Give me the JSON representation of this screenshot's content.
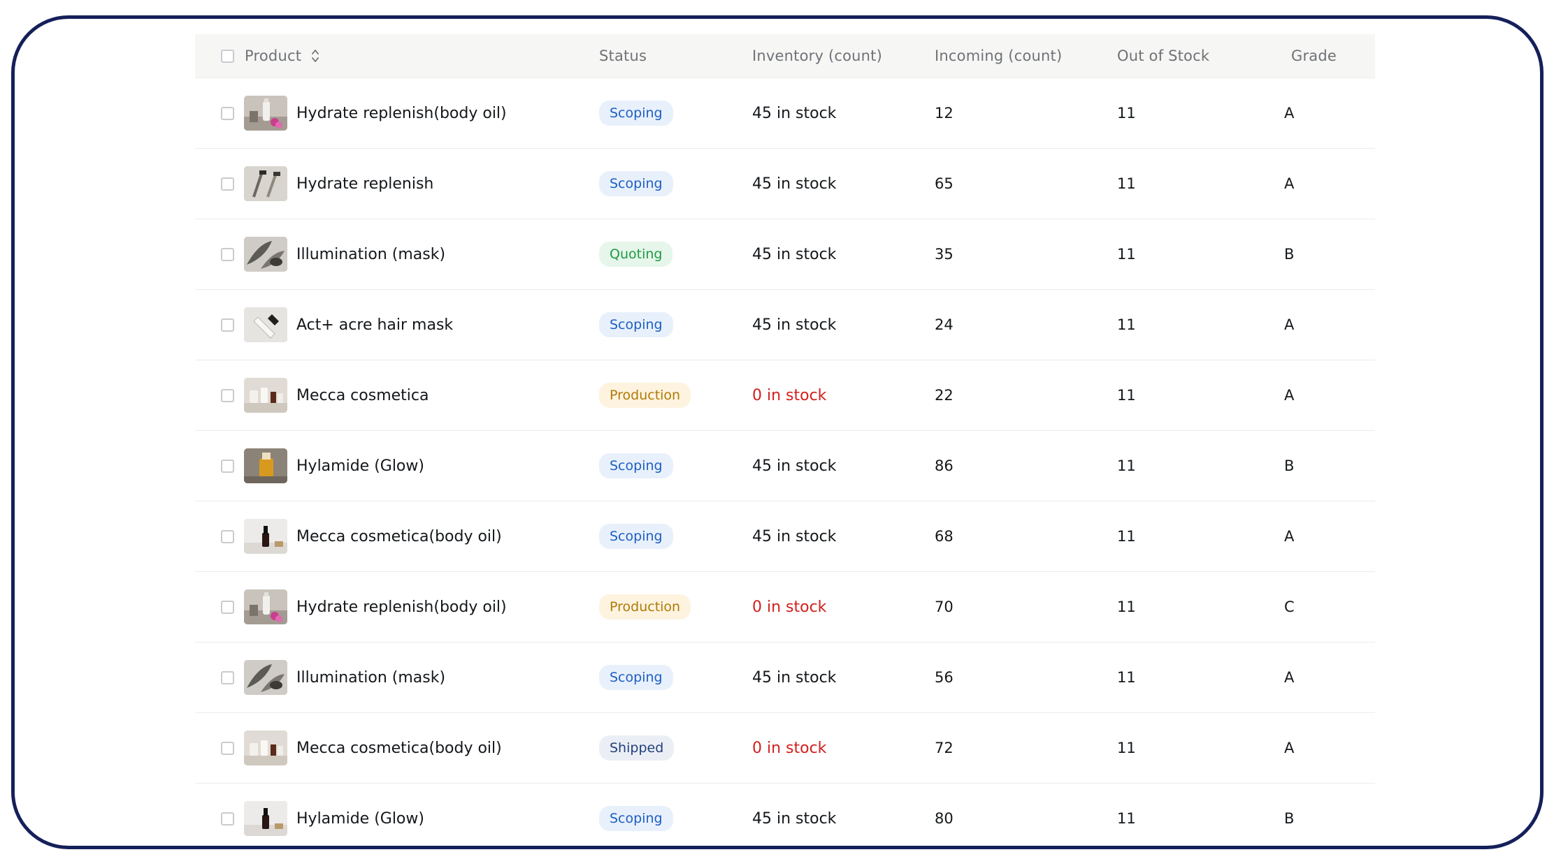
{
  "table": {
    "columns": {
      "product": "Product",
      "status": "Status",
      "inventory": "Inventory (count)",
      "incoming": "Incoming (count)",
      "out_of_stock": "Out of Stock",
      "grade": "Grade"
    },
    "rows": [
      {
        "name": "Hydrate replenish(body oil)",
        "thumb": "bottle-flower",
        "status": "Scoping",
        "status_kind": "scoping",
        "inventory": "45 in stock",
        "inventory_out": false,
        "incoming": "12",
        "out_of_stock": "11",
        "grade": "A"
      },
      {
        "name": "Hydrate replenish",
        "thumb": "roller",
        "status": "Scoping",
        "status_kind": "scoping",
        "inventory": "45 in stock",
        "inventory_out": false,
        "incoming": "65",
        "out_of_stock": "11",
        "grade": "A"
      },
      {
        "name": "Illumination (mask)",
        "thumb": "leaves",
        "status": "Quoting",
        "status_kind": "quoting",
        "inventory": "45 in stock",
        "inventory_out": false,
        "incoming": "35",
        "out_of_stock": "11",
        "grade": "B"
      },
      {
        "name": "Act+ acre hair mask",
        "thumb": "tube",
        "status": "Scoping",
        "status_kind": "scoping",
        "inventory": "45 in stock",
        "inventory_out": false,
        "incoming": "24",
        "out_of_stock": "11",
        "grade": "A"
      },
      {
        "name": "Mecca cosmetica",
        "thumb": "jars",
        "status": "Production",
        "status_kind": "production",
        "inventory": "0 in stock",
        "inventory_out": true,
        "incoming": "22",
        "out_of_stock": "11",
        "grade": "A"
      },
      {
        "name": "Hylamide (Glow)",
        "thumb": "serum",
        "status": "Scoping",
        "status_kind": "scoping",
        "inventory": "45 in stock",
        "inventory_out": false,
        "incoming": "86",
        "out_of_stock": "11",
        "grade": "B"
      },
      {
        "name": "Mecca cosmetica(body oil)",
        "thumb": "dropper",
        "status": "Scoping",
        "status_kind": "scoping",
        "inventory": "45 in stock",
        "inventory_out": false,
        "incoming": "68",
        "out_of_stock": "11",
        "grade": "A"
      },
      {
        "name": "Hydrate replenish(body oil)",
        "thumb": "bottle-flower",
        "status": "Production",
        "status_kind": "production",
        "inventory": "0 in stock",
        "inventory_out": true,
        "incoming": "70",
        "out_of_stock": "11",
        "grade": "C"
      },
      {
        "name": "Illumination (mask)",
        "thumb": "leaves",
        "status": "Scoping",
        "status_kind": "scoping",
        "inventory": "45 in stock",
        "inventory_out": false,
        "incoming": "56",
        "out_of_stock": "11",
        "grade": "A"
      },
      {
        "name": "Mecca cosmetica(body oil)",
        "thumb": "jars",
        "status": "Shipped",
        "status_kind": "shipped",
        "inventory": "0 in stock",
        "inventory_out": true,
        "incoming": "72",
        "out_of_stock": "11",
        "grade": "A"
      },
      {
        "name": "Hylamide (Glow)",
        "thumb": "dropper",
        "status": "Scoping",
        "status_kind": "scoping",
        "inventory": "45 in stock",
        "inventory_out": false,
        "incoming": "80",
        "out_of_stock": "11",
        "grade": "B"
      }
    ]
  },
  "icons": {
    "sort": "sort-icon",
    "checkbox": "checkbox"
  },
  "colors": {
    "frame_border": "#15205a",
    "scoping": "#1d5fc0",
    "quoting": "#1f9a45",
    "production": "#b07a07",
    "shipped": "#22407a",
    "out_of_stock_text": "#d0201d"
  }
}
